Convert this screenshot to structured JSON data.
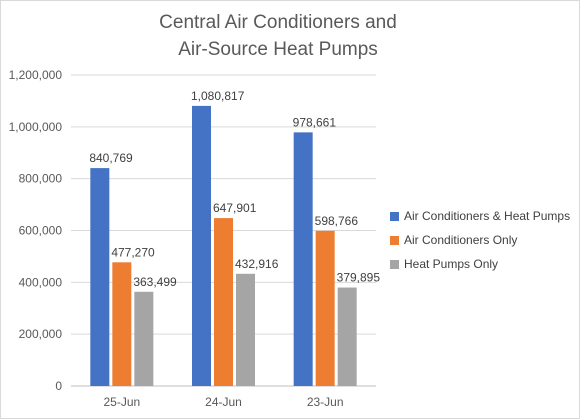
{
  "chart_data": {
    "type": "bar",
    "title_lines": [
      "Central Air Conditioners and",
      "Air-Source Heat Pumps"
    ],
    "categories": [
      "25-Jun",
      "24-Jun",
      "23-Jun"
    ],
    "series": [
      {
        "name": "Air Conditioners & Heat Pumps",
        "values": [
          840769,
          1080817,
          978661
        ],
        "color": "#4472C4"
      },
      {
        "name": "Air Conditioners Only",
        "values": [
          477270,
          647901,
          598766
        ],
        "color": "#ED7D31"
      },
      {
        "name": "Heat Pumps Only",
        "values": [
          363499,
          432916,
          379895
        ],
        "color": "#A5A5A5"
      }
    ],
    "data_labels": [
      [
        "840,769",
        "1,080,817",
        "978,661"
      ],
      [
        "477,270",
        "647,901",
        "598,766"
      ],
      [
        "363,499",
        "432,916",
        "379,895"
      ]
    ],
    "yticks": [
      0,
      200000,
      400000,
      600000,
      800000,
      1000000,
      1200000
    ],
    "ytick_labels": [
      "0",
      "200,000",
      "400,000",
      "600,000",
      "800,000",
      "1,000,000",
      "1,200,000"
    ],
    "ylim": [
      0,
      1200000
    ],
    "grid": true,
    "legend_position": "right",
    "xlabel": "",
    "ylabel": ""
  }
}
